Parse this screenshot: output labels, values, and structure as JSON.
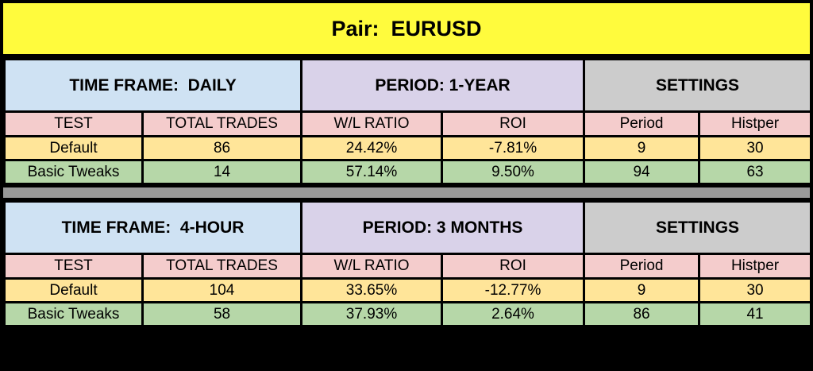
{
  "title": "Pair:  EURUSD",
  "colors": {
    "title_background": "#FFFB3D",
    "time_frame_header": "#CFE2F3",
    "period_header": "#D9D2E9",
    "settings_header": "#CCCCCC",
    "column_header": "#F4CCCC",
    "default_row": "#FFE599",
    "basic_tweaks_row": "#B6D7A8",
    "divider": "#999999",
    "border": "#000000"
  },
  "columns": {
    "test": "TEST",
    "total_trades": "TOTAL TRADES",
    "wl_ratio": "W/L RATIO",
    "roi": "ROI",
    "period": "Period",
    "histper": "Histper"
  },
  "sections": [
    {
      "time_frame": "TIME FRAME:  DAILY",
      "period": "PERIOD: 1-YEAR",
      "settings": "SETTINGS",
      "rows": [
        {
          "test": "Default",
          "total_trades": "86",
          "wl_ratio": "24.42%",
          "roi": "-7.81%",
          "period": "9",
          "histper": "30"
        },
        {
          "test": "Basic Tweaks",
          "total_trades": "14",
          "wl_ratio": "57.14%",
          "roi": "9.50%",
          "period": "94",
          "histper": "63"
        }
      ]
    },
    {
      "time_frame": "TIME FRAME:  4-HOUR",
      "period": "PERIOD: 3 MONTHS",
      "settings": "SETTINGS",
      "rows": [
        {
          "test": "Default",
          "total_trades": "104",
          "wl_ratio": "33.65%",
          "roi": "-12.77%",
          "period": "9",
          "histper": "30"
        },
        {
          "test": "Basic Tweaks",
          "total_trades": "58",
          "wl_ratio": "37.93%",
          "roi": "2.64%",
          "period": "86",
          "histper": "41"
        }
      ]
    }
  ],
  "chart_data": [
    {
      "type": "table",
      "title": "Pair: EURUSD — TIME FRAME: DAILY, PERIOD: 1-YEAR",
      "columns": [
        "TEST",
        "TOTAL TRADES",
        "W/L RATIO",
        "ROI",
        "Period",
        "Histper"
      ],
      "rows": [
        [
          "Default",
          86,
          "24.42%",
          "-7.81%",
          9,
          30
        ],
        [
          "Basic Tweaks",
          14,
          "57.14%",
          "9.50%",
          94,
          63
        ]
      ]
    },
    {
      "type": "table",
      "title": "Pair: EURUSD — TIME FRAME: 4-HOUR, PERIOD: 3 MONTHS",
      "columns": [
        "TEST",
        "TOTAL TRADES",
        "W/L RATIO",
        "ROI",
        "Period",
        "Histper"
      ],
      "rows": [
        [
          "Default",
          104,
          "33.65%",
          "-12.77%",
          9,
          30
        ],
        [
          "Basic Tweaks",
          58,
          "37.93%",
          "2.64%",
          86,
          41
        ]
      ]
    }
  ]
}
